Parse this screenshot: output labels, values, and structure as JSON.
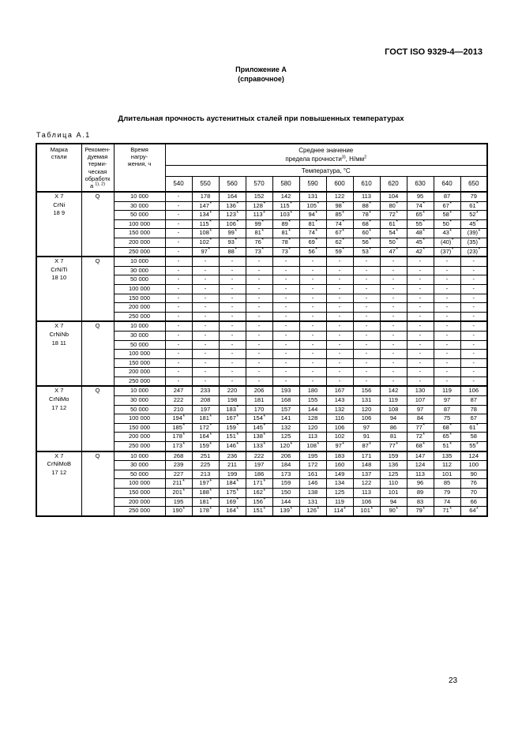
{
  "page": {
    "doc_ref": "ГОСТ ISO 9329-4—2013",
    "annex_line1": "Приложение А",
    "annex_line2": "(справочное)",
    "title": "Длительная прочность аустенитных сталей при повышенных температурах",
    "table_label": "Таблица А.1",
    "page_number": "23"
  },
  "table": {
    "header": {
      "grade": "Марка\nстали",
      "treatment": "Рекомен-\nдуемая\nтерми-\nческая\nобработк\nа ^{1), 2)}",
      "time": "Время\nнагру-\nжения, ч",
      "mean": "Среднее значение\nпредела прочности^{3)}, Н/мм^{2}",
      "temp_label": "Температура, °С",
      "temps": [
        "540",
        "550",
        "560",
        "570",
        "580",
        "590",
        "600",
        "610",
        "620",
        "630",
        "640",
        "650"
      ]
    },
    "blocks": [
      {
        "grade": "X 7\nCrNi\n18 9",
        "treatment": "Q",
        "rows": [
          {
            "time": "10 000",
            "values": [
              "-",
              "178",
              "164",
              "152",
              "142",
              "131",
              "122",
              "113",
              "104",
              "95",
              "87",
              "79"
            ]
          },
          {
            "time": "30 000",
            "values": [
              "-",
              "147*",
              "136*",
              "128*",
              "115*",
              "105*",
              "98*",
              "88*",
              "80*",
              "74*",
              "67*",
              "61*"
            ]
          },
          {
            "time": "50 000",
            "values": [
              "-",
              "134*",
              "123*",
              "113*",
              "103*",
              "94*",
              "85*",
              "78*",
              "72*",
              "65*",
              "58*",
              "52*"
            ]
          },
          {
            "time": "100 000",
            "values": [
              "-",
              "115*",
              "106*",
              "99*",
              "89*",
              "81*",
              "74*",
              "68*",
              "61*",
              "55*",
              "50*",
              "45*"
            ]
          },
          {
            "time": "150 000",
            "values": [
              "-",
              "108*",
              "99*",
              "81*",
              "81*",
              "74*",
              "67*",
              "60*",
              "54*",
              "48*",
              "43*",
              "(39)*"
            ]
          },
          {
            "time": "200 000",
            "values": [
              "-",
              "102*",
              "93*",
              "76*",
              "78*",
              "69*",
              "62*",
              "56*",
              "50*",
              "45*",
              "(40)*",
              "(35)*"
            ]
          },
          {
            "time": "250 000",
            "values": [
              "-",
              "97*",
              "88*",
              "73*",
              "73*",
              "56*",
              "59*",
              "53*",
              "47*",
              "42*",
              "(37)*",
              "(23)*"
            ]
          }
        ]
      },
      {
        "grade": "X 7\nCrNiTi\n18 10",
        "treatment": "Q",
        "rows": [
          {
            "time": "10 000",
            "values": [
              "-",
              "-",
              "-",
              "-",
              "-",
              "-",
              "-",
              "-",
              "-",
              "-",
              "-",
              "-"
            ]
          },
          {
            "time": "30 000",
            "values": [
              "-",
              "-",
              "-",
              "-",
              "-",
              "-",
              "-",
              "-",
              "-",
              "-",
              "-",
              "-"
            ]
          },
          {
            "time": "50 000",
            "values": [
              "-",
              "-",
              "-",
              "-",
              "-",
              "-",
              "-",
              "-",
              "-",
              "-",
              "-",
              "-"
            ]
          },
          {
            "time": "100 000",
            "values": [
              "-",
              "-",
              "-",
              "-",
              "-",
              "-",
              "-",
              "-",
              "-",
              "-",
              "-",
              "-"
            ]
          },
          {
            "time": "150 000",
            "values": [
              "-",
              "-",
              "-",
              "-",
              "-",
              "-",
              "-",
              "-",
              "-",
              "-",
              "-",
              "-"
            ]
          },
          {
            "time": "200 000",
            "values": [
              "-",
              "-",
              "-",
              "-",
              "-",
              "-",
              "-",
              "-",
              "-",
              "-",
              "-",
              "-"
            ]
          },
          {
            "time": "250 000",
            "values": [
              "-",
              "-",
              "-",
              "-",
              "-",
              "-",
              "-",
              "-",
              "-",
              "-",
              "-",
              "-"
            ]
          }
        ]
      },
      {
        "grade": "X 7\nCrNiNb\n18 11",
        "treatment": "Q",
        "rows": [
          {
            "time": "10 000",
            "values": [
              "-",
              "-",
              "-",
              "-",
              "-",
              "-",
              "-",
              "-",
              "-",
              "-",
              "-",
              "-"
            ]
          },
          {
            "time": "30 000",
            "values": [
              "-",
              "-",
              "-",
              "-",
              "-",
              "-",
              "-",
              "-",
              "-",
              "-",
              "-",
              "-"
            ]
          },
          {
            "time": "50 000",
            "values": [
              "-",
              "-",
              "-",
              "-",
              "-",
              "-",
              "-",
              "-",
              "-",
              "-",
              "-",
              "-"
            ]
          },
          {
            "time": "100 000",
            "values": [
              "-",
              "-",
              "-",
              "-",
              "-",
              "-",
              "-",
              "-",
              "-",
              "-",
              "-",
              "-"
            ]
          },
          {
            "time": "150 000",
            "values": [
              "-",
              "-",
              "-",
              "-",
              "-",
              "-",
              "-",
              "-",
              "-",
              "-",
              "-",
              "-"
            ]
          },
          {
            "time": "200 000",
            "values": [
              "-",
              "-",
              "-",
              "-",
              "-",
              "-",
              "-",
              "-",
              "-",
              "-",
              "-",
              "-"
            ]
          },
          {
            "time": "250 000",
            "values": [
              "-",
              "-",
              "-",
              "-",
              "-",
              "-",
              "-",
              "-",
              "-",
              "-",
              "-",
              "-"
            ]
          }
        ]
      },
      {
        "grade": "X 7\nCrNiMo\n17 12",
        "treatment": "Q",
        "rows": [
          {
            "time": "10 000",
            "values": [
              "247",
              "233",
              "220",
              "206",
              "193",
              "180",
              "167",
              "156",
              "142",
              "130",
              "119",
              "106"
            ]
          },
          {
            "time": "30 000",
            "values": [
              "222",
              "208",
              "198",
              "181",
              "168",
              "155",
              "143",
              "131",
              "119",
              "107",
              "97",
              "87"
            ]
          },
          {
            "time": "50 000",
            "values": [
              "210",
              "197",
              "183*",
              "170",
              "157",
              "144",
              "132",
              "120",
              "108",
              "97",
              "87",
              "78"
            ]
          },
          {
            "time": "100 000",
            "values": [
              "194*",
              "181*",
              "167*",
              "154*",
              "141",
              "128",
              "116",
              "106",
              "94",
              "84",
              "75",
              "67"
            ]
          },
          {
            "time": "150 000",
            "values": [
              "185*",
              "172*",
              "159*",
              "145*",
              "132",
              "120",
              "106",
              "97",
              "86",
              "77*",
              "68*",
              "61*"
            ]
          },
          {
            "time": "200 000",
            "values": [
              "178*",
              "164*",
              "151*",
              "138*",
              "125",
              "113",
              "102",
              "91",
              "81",
              "72*",
              "65*",
              "58"
            ]
          },
          {
            "time": "250 000",
            "values": [
              "173*",
              "159*",
              "146*",
              "133*",
              "120*",
              "108*",
              "97*",
              "87*",
              "77*",
              "68*",
              "51*",
              "55*"
            ]
          }
        ]
      },
      {
        "grade": "X 7\nCrNiMoB\n17 12",
        "treatment": "Q",
        "rows": [
          {
            "time": "10 000",
            "values": [
              "268",
              "251",
              "236",
              "222",
              "206",
              "195",
              "183",
              "171",
              "159",
              "147",
              "135",
              "124"
            ]
          },
          {
            "time": "30 000",
            "values": [
              "239",
              "225",
              "211",
              "197",
              "184",
              "172",
              "160",
              "148",
              "136",
              "124",
              "112",
              "100"
            ]
          },
          {
            "time": "50 000",
            "values": [
              "227",
              "213",
              "199",
              "186",
              "173",
              "161",
              "149",
              "137",
              "125",
              "113",
              "101",
              "90"
            ]
          },
          {
            "time": "100 000",
            "values": [
              "211*",
              "197*",
              "184*",
              "171*",
              "159",
              "146",
              "134",
              "122",
              "110",
              "96",
              "85",
              "76"
            ]
          },
          {
            "time": "150 000",
            "values": [
              "201*",
              "188*",
              "175*",
              "162*",
              "150",
              "138",
              "125",
              "113",
              "101",
              "89",
              "79",
              "70"
            ]
          },
          {
            "time": "200 000",
            "values": [
              "195",
              "181*",
              "169*",
              "156*",
              "144",
              "131",
              "119",
              "106",
              "94",
              "83",
              "74",
              "66"
            ]
          },
          {
            "time": "250 000",
            "values": [
              "190*",
              "178*",
              "164*",
              "151*",
              "139*",
              "126*",
              "114*",
              "101*",
              "90*",
              "79*",
              "71*",
              "64*"
            ]
          }
        ]
      }
    ]
  }
}
